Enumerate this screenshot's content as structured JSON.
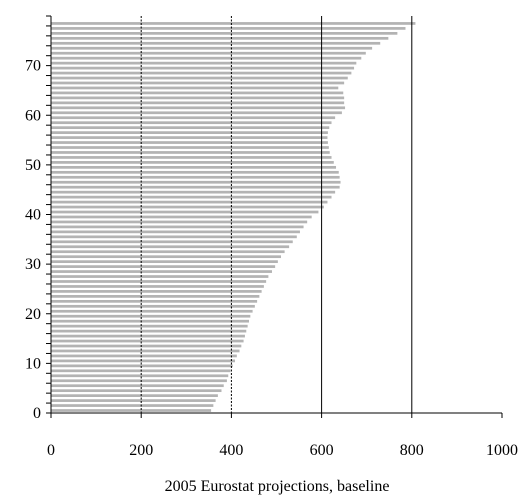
{
  "chart_data": {
    "type": "bar",
    "orientation": "horizontal",
    "title": "",
    "xlabel": "2005 Eurostat projections, baseline",
    "ylabel": "",
    "xlim": [
      0,
      1000
    ],
    "ylim": [
      0,
      79
    ],
    "xticks": [
      0,
      200,
      400,
      600,
      800,
      1000
    ],
    "yticks": [
      0,
      10,
      20,
      30,
      40,
      50,
      60,
      70
    ],
    "grid": "vertical",
    "series_color": "#b3b3b3",
    "categories": [
      0,
      1,
      2,
      3,
      4,
      5,
      6,
      7,
      8,
      9,
      10,
      11,
      12,
      13,
      14,
      15,
      16,
      17,
      18,
      19,
      20,
      21,
      22,
      23,
      24,
      25,
      26,
      27,
      28,
      29,
      30,
      31,
      32,
      33,
      34,
      35,
      36,
      37,
      38,
      39,
      40,
      41,
      42,
      43,
      44,
      45,
      46,
      47,
      48,
      49,
      50,
      51,
      52,
      53,
      54,
      55,
      56,
      57,
      58,
      59,
      60,
      61,
      62,
      63,
      64,
      65,
      66,
      67,
      68,
      69,
      70,
      71,
      72,
      73,
      74,
      75,
      76,
      77,
      78
    ],
    "values": [
      355,
      360,
      365,
      370,
      378,
      383,
      390,
      393,
      398,
      403,
      408,
      412,
      418,
      422,
      427,
      430,
      433,
      436,
      439,
      442,
      447,
      452,
      457,
      462,
      467,
      472,
      477,
      482,
      490,
      497,
      503,
      510,
      518,
      528,
      536,
      545,
      552,
      560,
      568,
      578,
      593,
      605,
      613,
      622,
      630,
      640,
      642,
      640,
      638,
      632,
      627,
      622,
      618,
      616,
      614,
      613,
      614,
      617,
      622,
      630,
      645,
      652,
      650,
      650,
      648,
      637,
      650,
      658,
      666,
      672,
      677,
      688,
      698,
      712,
      730,
      748,
      768,
      786,
      808
    ]
  }
}
